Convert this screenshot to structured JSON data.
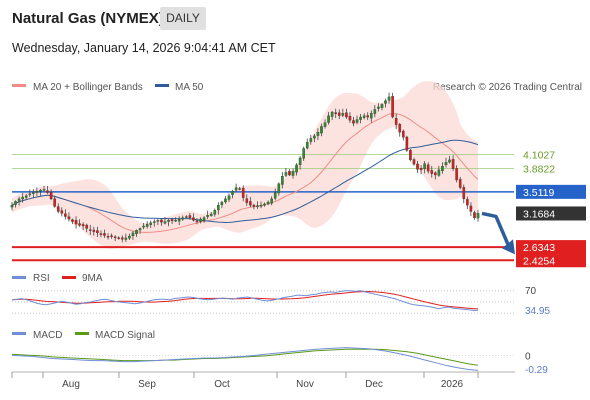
{
  "header": {
    "title": "Natural Gas (NYMEX)",
    "timeframe": "DAILY",
    "datetime": "Wednesday, January 14, 2026 9:04:41 AM CET"
  },
  "chart_data": {
    "type": "candlestick",
    "credit": "Research © 2026 Trading Central",
    "legend": [
      {
        "label": "MA 20 + Bollinger Bands",
        "color": "#f08c84"
      },
      {
        "label": "MA 50",
        "color": "#2f5d9b"
      }
    ],
    "x_months": [
      "Aug",
      "Sep",
      "Oct",
      "Nov",
      "Dec",
      "2026"
    ],
    "y_range": [
      2.35,
      5.05
    ],
    "levels": [
      {
        "value": 4.1027,
        "label": "4.1027",
        "kind": "resistance",
        "color": "#9acd78",
        "text_color": "#6a9c2a"
      },
      {
        "value": 3.8822,
        "label": "3.8822",
        "kind": "resistance",
        "color": "#9acd78",
        "text_color": "#6a9c2a"
      },
      {
        "value": 3.5119,
        "label": "3.5119",
        "kind": "pivot",
        "color": "#2563c9",
        "text_color": "#ffffff"
      },
      {
        "value": 3.1684,
        "label": "3.1684",
        "kind": "last",
        "color": "#333333",
        "text_color": "#ffffff"
      },
      {
        "value": 2.6343,
        "label": "2.6343",
        "kind": "support",
        "color": "#e02020",
        "text_color": "#ffffff"
      },
      {
        "value": 2.4254,
        "label": "2.4254",
        "kind": "support",
        "color": "#e02020",
        "text_color": "#ffffff"
      }
    ],
    "closes": [
      3.3,
      3.36,
      3.4,
      3.43,
      3.45,
      3.48,
      3.5,
      3.52,
      3.54,
      3.55,
      3.5,
      3.4,
      3.28,
      3.2,
      3.17,
      3.12,
      3.08,
      3.04,
      3.0,
      2.98,
      2.97,
      2.93,
      2.9,
      2.88,
      2.86,
      2.84,
      2.82,
      2.8,
      2.81,
      2.79,
      2.78,
      2.76,
      2.78,
      2.81,
      2.86,
      2.9,
      2.93,
      2.97,
      3.0,
      3.02,
      3.04,
      3.06,
      3.03,
      3.04,
      3.06,
      3.05,
      3.06,
      3.08,
      3.1,
      3.12,
      3.1,
      3.06,
      3.04,
      3.08,
      3.1,
      3.14,
      3.16,
      3.22,
      3.3,
      3.35,
      3.4,
      3.45,
      3.52,
      3.58,
      3.56,
      3.42,
      3.34,
      3.3,
      3.28,
      3.29,
      3.3,
      3.32,
      3.35,
      3.4,
      3.5,
      3.64,
      3.76,
      3.82,
      3.78,
      3.84,
      3.94,
      4.05,
      4.2,
      4.3,
      4.36,
      4.4,
      4.46,
      4.55,
      4.61,
      4.72,
      4.78,
      4.75,
      4.72,
      4.76,
      4.7,
      4.65,
      4.6,
      4.66,
      4.7,
      4.72,
      4.7,
      4.76,
      4.82,
      4.86,
      4.9,
      4.96,
      5.02,
      4.7,
      4.58,
      4.46,
      4.38,
      4.17,
      4.02,
      3.95,
      3.87,
      3.86,
      3.96,
      3.84,
      3.8,
      3.78,
      3.86,
      3.92,
      3.98,
      4.02,
      3.88,
      3.7,
      3.58,
      3.4,
      3.3,
      3.2,
      3.1,
      3.17
    ],
    "forecast": {
      "from": 3.1684,
      "to": 2.55
    },
    "rsi": {
      "label": "RSI",
      "signal_label": "9MA",
      "color": "#6f8fd6",
      "signal_color": "#e02020",
      "levels": [
        {
          "value": 70,
          "label": "70"
        },
        {
          "value": 50,
          "label": ""
        },
        {
          "value": 30,
          "label": ""
        }
      ],
      "last": "34.95",
      "values": [
        54,
        55,
        56,
        54,
        51,
        48,
        46,
        45,
        47,
        49,
        51,
        50,
        48,
        46,
        47,
        49,
        50,
        52,
        54,
        55,
        53,
        51,
        50,
        49,
        48,
        47,
        48,
        50,
        52,
        54,
        55,
        55,
        54,
        56,
        57,
        58,
        59,
        58,
        56,
        55,
        54,
        55,
        56,
        57,
        56,
        55,
        57,
        58,
        59,
        57,
        55,
        53,
        52,
        53,
        55,
        57,
        59,
        60,
        62,
        62,
        61,
        63,
        64,
        66,
        67,
        68,
        67,
        69,
        70,
        70,
        69,
        70,
        68,
        66,
        64,
        62,
        60,
        58,
        56,
        53,
        50,
        47,
        45,
        44,
        43,
        42,
        40,
        38,
        40,
        41,
        39,
        38,
        37,
        36,
        35,
        35
      ]
    },
    "macd": {
      "label": "MACD",
      "signal_label": "MACD Signal",
      "color": "#6f8fd6",
      "signal_color": "#5a9a1a",
      "zero_label": "0",
      "last": "-0.29",
      "values": [
        0.0,
        -0.01,
        -0.02,
        -0.04,
        -0.06,
        -0.07,
        -0.08,
        -0.09,
        -0.1,
        -0.1,
        -0.11,
        -0.12,
        -0.12,
        -0.11,
        -0.1,
        -0.09,
        -0.08,
        -0.07,
        -0.06,
        -0.05,
        -0.05,
        -0.04,
        -0.03,
        -0.02,
        0.0,
        0.02,
        0.04,
        0.06,
        0.08,
        0.1,
        0.12,
        0.13,
        0.14,
        0.15,
        0.14,
        0.13,
        0.11,
        0.08,
        0.04,
        0.0,
        -0.05,
        -0.1,
        -0.15,
        -0.2,
        -0.24,
        -0.27,
        -0.29
      ],
      "signal_values": [
        0.02,
        0.01,
        0.0,
        -0.01,
        -0.03,
        -0.04,
        -0.05,
        -0.06,
        -0.07,
        -0.08,
        -0.09,
        -0.1,
        -0.1,
        -0.1,
        -0.1,
        -0.09,
        -0.09,
        -0.08,
        -0.07,
        -0.06,
        -0.06,
        -0.05,
        -0.04,
        -0.03,
        -0.02,
        -0.01,
        0.01,
        0.03,
        0.05,
        0.07,
        0.09,
        0.1,
        0.11,
        0.12,
        0.12,
        0.12,
        0.12,
        0.11,
        0.09,
        0.07,
        0.04,
        0.0,
        -0.04,
        -0.08,
        -0.12,
        -0.16,
        -0.19
      ]
    }
  }
}
